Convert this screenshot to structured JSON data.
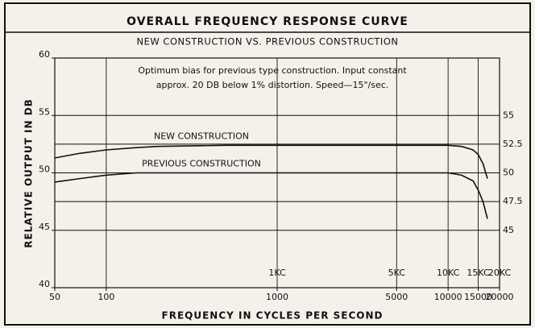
{
  "chart_data": {
    "type": "line",
    "title": "OVERALL FREQUENCY RESPONSE CURVE",
    "subtitle": "NEW CONSTRUCTION VS. PREVIOUS CONSTRUCTION",
    "annotations": [
      "Optimum bias for previous type construction. Input constant",
      "approx. 20 DB below  1% distortion. Speed—15\"/sec."
    ],
    "x_label": "FREQUENCY IN CYCLES PER SECOND",
    "y_label": "RELATIVE OUTPUT IN DB",
    "x": [
      50,
      70,
      100,
      150,
      200,
      500,
      1000,
      5000,
      10000,
      12000,
      14000,
      15000,
      16000,
      17000
    ],
    "series": [
      {
        "name": "NEW CONSTRUCTION",
        "color": "#111111",
        "values": [
          51.3,
          51.7,
          52,
          52.2,
          52.3,
          52.4,
          52.4,
          52.4,
          52.4,
          52.3,
          52,
          51.6,
          50.8,
          49.5
        ]
      },
      {
        "name": "PREVIOUS CONSTRUCTION",
        "color": "#111111",
        "values": [
          49.2,
          49.5,
          49.8,
          50,
          50,
          50,
          50,
          50,
          50,
          49.8,
          49.3,
          48.5,
          47.5,
          46
        ]
      }
    ],
    "xlim": [
      50,
      20000
    ],
    "xscale": "log",
    "xticks": [
      50,
      100,
      1000,
      5000,
      10000,
      15000,
      20000
    ],
    "x2ticks": [
      {
        "value": 1000,
        "label": "1KC"
      },
      {
        "value": 5000,
        "label": "5KC"
      },
      {
        "value": 10000,
        "label": "10KC"
      },
      {
        "value": 15000,
        "label": "15KC"
      },
      {
        "value": 20000,
        "label": "20KC"
      }
    ],
    "ylim": [
      40,
      60
    ],
    "yticks": [
      40,
      45,
      50,
      55,
      60
    ],
    "y2lim": [
      40,
      60
    ],
    "y2ticks": [
      45,
      47.5,
      50,
      52.5,
      55
    ],
    "grid": true
  }
}
